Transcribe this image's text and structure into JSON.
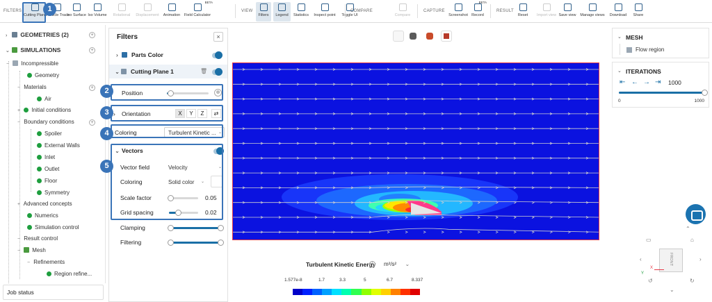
{
  "toolbar": {
    "groups": {
      "filters": "FILTERS",
      "view": "VIEW",
      "compare": "COMPARE",
      "capture": "CAPTURE",
      "result": "RESULT"
    },
    "filters_buttons": [
      {
        "label": "Cutting Plane",
        "icon": "cutting-plane-icon",
        "active": true
      },
      {
        "label": "Particle Trace",
        "icon": "particle-trace-icon"
      },
      {
        "label": "Iso Surface",
        "icon": "iso-surface-icon"
      },
      {
        "label": "Iso Volume",
        "icon": "iso-volume-icon"
      },
      {
        "label": "Rotational",
        "icon": "rotational-icon",
        "disabled": true
      },
      {
        "label": "Displacement",
        "icon": "displacement-icon",
        "disabled": true
      },
      {
        "label": "Animation",
        "icon": "animation-icon"
      },
      {
        "label": "Field Calculator",
        "icon": "field-calculator-icon",
        "beta": "BETA"
      }
    ],
    "view_buttons": [
      {
        "label": "Filters",
        "icon": "filters-icon",
        "active": true
      },
      {
        "label": "Legend",
        "icon": "legend-icon",
        "active": true
      },
      {
        "label": "Statistics",
        "icon": "statistics-icon"
      },
      {
        "label": "Inspect point",
        "icon": "inspect-point-icon"
      },
      {
        "label": "Toggle UI",
        "icon": "toggle-ui-icon"
      }
    ],
    "compare_buttons": [
      {
        "label": "Compare",
        "icon": "compare-icon",
        "disabled": true
      }
    ],
    "capture_buttons": [
      {
        "label": "Screenshot",
        "icon": "screenshot-icon"
      },
      {
        "label": "Record",
        "icon": "record-icon",
        "beta": "BETA"
      }
    ],
    "result_buttons": [
      {
        "label": "Reset",
        "icon": "reset-icon"
      },
      {
        "label": "Import view",
        "icon": "import-view-icon",
        "disabled": true
      },
      {
        "label": "Save view",
        "icon": "save-view-icon"
      },
      {
        "label": "Manage views",
        "icon": "manage-views-icon"
      },
      {
        "label": "Download",
        "icon": "download-icon"
      },
      {
        "label": "Share",
        "icon": "share-icon"
      }
    ]
  },
  "tree": {
    "geometries": "GEOMETRIES (2)",
    "simulations": "SIMULATIONS",
    "incompressible": "Incompressible",
    "geometry": "Geometry",
    "materials": "Materials",
    "air": "Air",
    "initial_conditions": "Initial conditions",
    "boundary_conditions": "Boundary conditions",
    "spoiler": "Spoiler",
    "external_walls": "External Walls",
    "inlet": "Inlet",
    "outlet": "Outlet",
    "floor": "Floor",
    "symmetry": "Symmetry",
    "advanced_concepts": "Advanced concepts",
    "numerics": "Numerics",
    "simulation_control": "Simulation control",
    "result_control": "Result control",
    "mesh": "Mesh",
    "refinements": "Refinements",
    "region_refinement": "Region refine..."
  },
  "job_status": "Job status",
  "filters": {
    "title": "Filters",
    "close": "×",
    "parts_color": "Parts Color",
    "cutting_plane": "Cutting Plane 1",
    "position": "Position",
    "orientation": "Orientation",
    "axes": [
      "X",
      "Y",
      "Z"
    ],
    "coloring_label": "Coloring",
    "coloring_value": "Turbulent Kinetic ...",
    "vectors": "Vectors",
    "vector_field_label": "Vector field",
    "vector_field_value": "Velocity",
    "vec_coloring_label": "Coloring",
    "vec_coloring_value": "Solid color",
    "scale_factor_label": "Scale factor",
    "scale_factor_value": "0.05",
    "scale_factor_level": 0.05,
    "grid_spacing_label": "Grid spacing",
    "grid_spacing_value": "0.02",
    "grid_spacing_level": 0.3,
    "clamping": "Clamping",
    "filtering": "Filtering",
    "position_level": 0.08
  },
  "callouts": [
    "1",
    "2",
    "3",
    "4",
    "5"
  ],
  "legend": {
    "title": "Turbulent Kinetic Energy",
    "unit": "m²/s²",
    "ticks": [
      "1.577e-8",
      "1.7",
      "3.3",
      "5",
      "6.7",
      "8.337"
    ],
    "colors": [
      "#0000c8",
      "#0020ff",
      "#0060ff",
      "#00a0ff",
      "#00e0ff",
      "#00ffb0",
      "#30ff50",
      "#90ff00",
      "#e0ff00",
      "#ffd000",
      "#ff8000",
      "#ff3000",
      "#e00000"
    ]
  },
  "mesh_panel": {
    "title": "MESH",
    "item": "Flow region"
  },
  "iterations_panel": {
    "title": "ITERATIONS",
    "value": "1000",
    "min": "0",
    "max": "1000",
    "level": 1.0
  },
  "view_cube": {
    "face": "FRONT",
    "x_axis": "X",
    "y_axis": "Y",
    "z_axis": "Z"
  },
  "colors": {
    "accent": "#1a6fa6",
    "callout": "#3a74b8",
    "viewport_bg": "#0b12e0",
    "boundary": "#e63946"
  }
}
